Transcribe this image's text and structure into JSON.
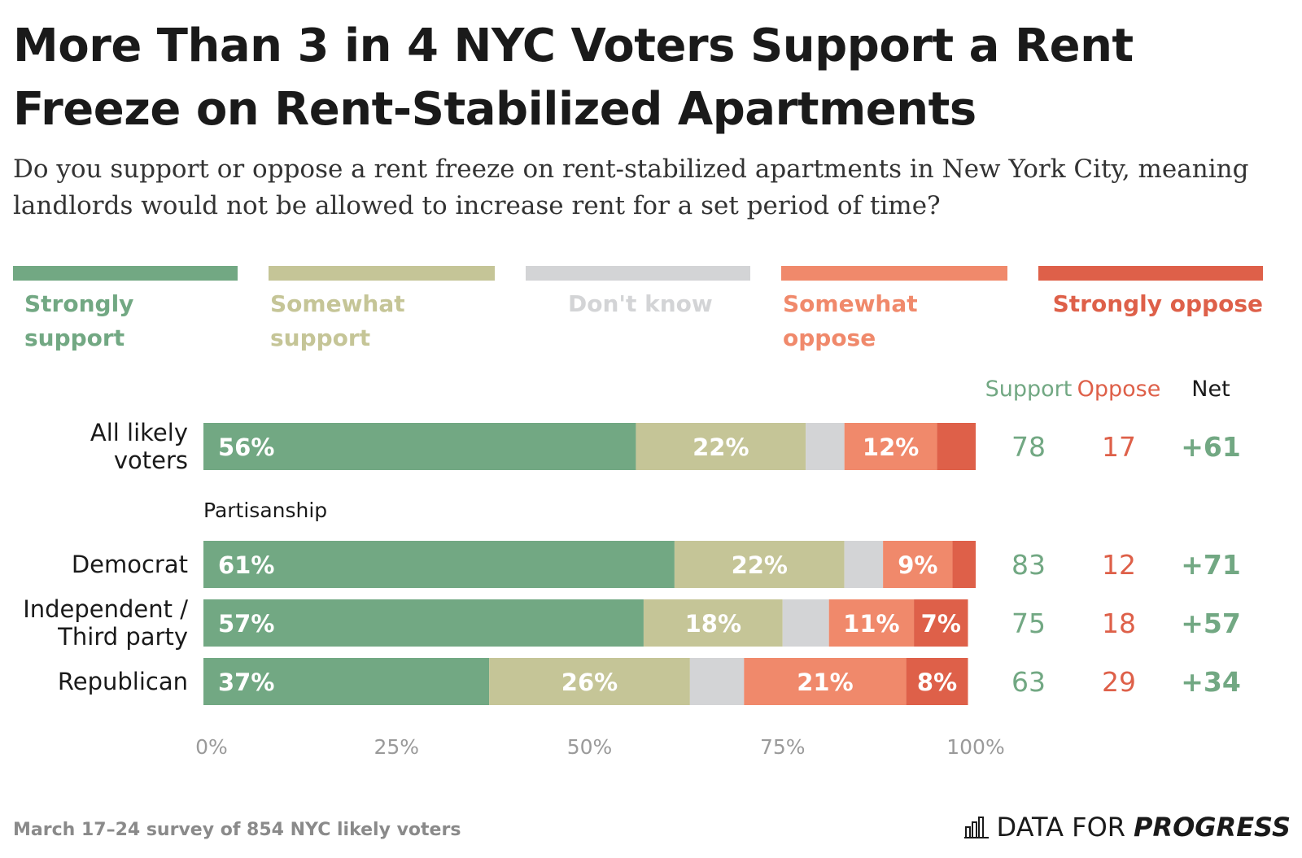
{
  "title": "More Than 3 in 4 NYC Voters Support a Rent Freeze on Rent-Stabilized Apartments",
  "subtitle": "Do you support or oppose a rent freeze on rent-stabilized apartments in New York City, meaning landlords would not be allowed to increase rent for a set period of time?",
  "legend": [
    {
      "label": "Strongly support",
      "color": "#72a883"
    },
    {
      "label": "Somewhat support",
      "color": "#c5c597"
    },
    {
      "label": "Don't know",
      "color": "#d3d4d6"
    },
    {
      "label": "Somewhat oppose",
      "color": "#f0896b"
    },
    {
      "label": "Strongly oppose",
      "color": "#de6049"
    }
  ],
  "chart_data": {
    "type": "bar",
    "orientation": "horizontal-stacked",
    "xlim": [
      0,
      100
    ],
    "x_ticks": [
      "0%",
      "25%",
      "50%",
      "75%",
      "100%"
    ],
    "group_label": "Partisanship",
    "columns": {
      "support": "Support",
      "oppose": "Oppose",
      "net": "Net"
    },
    "series": [
      {
        "name": "Strongly support",
        "color": "#72a883"
      },
      {
        "name": "Somewhat support",
        "color": "#c5c597"
      },
      {
        "name": "Don't know",
        "color": "#d3d4d6"
      },
      {
        "name": "Somewhat oppose",
        "color": "#f0896b"
      },
      {
        "name": "Strongly oppose",
        "color": "#de6049"
      }
    ],
    "rows": [
      {
        "category": "All likely voters",
        "category_lines": [
          "All likely",
          "voters"
        ],
        "values": [
          56,
          22,
          5,
          12,
          5
        ],
        "labels": [
          "56%",
          "22%",
          "",
          "12%",
          ""
        ],
        "support": "78",
        "oppose": "17",
        "net": "+61"
      },
      {
        "category": "Democrat",
        "category_lines": [
          "Democrat"
        ],
        "values": [
          61,
          22,
          5,
          9,
          3
        ],
        "labels": [
          "61%",
          "22%",
          "",
          "9%",
          ""
        ],
        "support": "83",
        "oppose": "12",
        "net": "+71"
      },
      {
        "category": "Independent / Third party",
        "category_lines": [
          "Independent /",
          "Third party"
        ],
        "values": [
          57,
          18,
          6,
          11,
          7
        ],
        "labels": [
          "57%",
          "18%",
          "",
          "11%",
          "7%"
        ],
        "support": "75",
        "oppose": "18",
        "net": "+57"
      },
      {
        "category": "Republican",
        "category_lines": [
          "Republican"
        ],
        "values": [
          37,
          26,
          7,
          21,
          8
        ],
        "labels": [
          "37%",
          "26%",
          "",
          "21%",
          "8%"
        ],
        "support": "63",
        "oppose": "29",
        "net": "+34"
      }
    ]
  },
  "footer": {
    "note": "March 17–24 survey of 854 NYC likely voters",
    "brand_light": "DATA FOR",
    "brand_bold": "PROGRESS"
  }
}
